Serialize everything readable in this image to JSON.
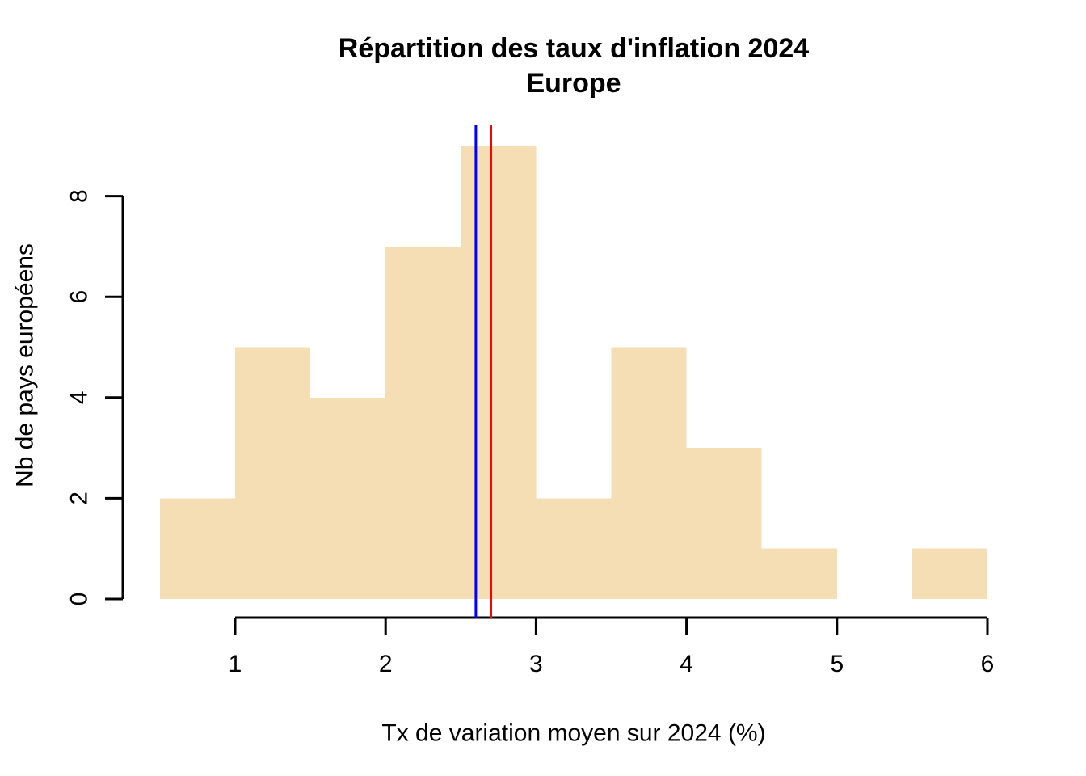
{
  "chart_data": {
    "type": "bar",
    "subtype": "histogram",
    "title": "Répartition des taux d'inflation 2024",
    "subtitle": "Europe",
    "xlabel": "Tx de variation moyen sur 2024 (%)",
    "ylabel": "Nb de pays européens",
    "bin_start": 0.5,
    "bin_width": 0.5,
    "bin_edges": [
      0.5,
      1.0,
      1.5,
      2.0,
      2.5,
      3.0,
      3.5,
      4.0,
      4.5,
      5.0,
      5.5,
      6.0
    ],
    "counts": [
      2,
      5,
      4,
      7,
      9,
      2,
      5,
      3,
      1,
      0,
      1
    ],
    "x_ticks": [
      1,
      2,
      3,
      4,
      5,
      6
    ],
    "y_ticks": [
      0,
      2,
      4,
      6,
      8
    ],
    "xlim": [
      0.5,
      6
    ],
    "ylim": [
      0,
      9
    ],
    "grid": false,
    "legend": null,
    "bar_color": "#F5DEB3",
    "axis_color": "#000000",
    "background_color": "#FFFFFF",
    "vlines": [
      {
        "x": 2.6,
        "color": "#0000FF",
        "name": "blue-reference-line"
      },
      {
        "x": 2.7,
        "color": "#FF0000",
        "name": "red-reference-line"
      }
    ]
  }
}
